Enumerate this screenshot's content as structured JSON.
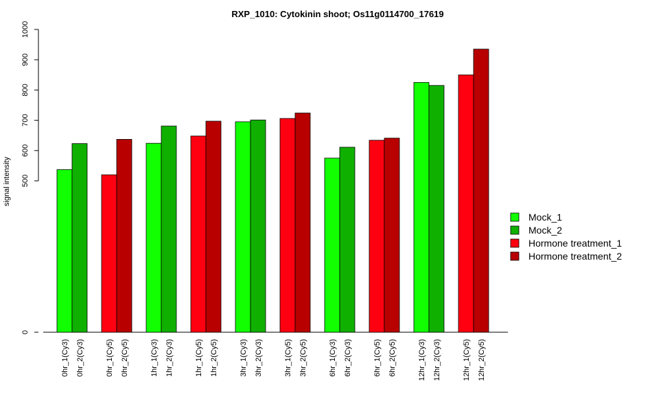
{
  "chart_data": {
    "type": "bar",
    "title": "RXP_1010: Cytokinin shoot; Os11g0114700_17619",
    "xlabel": "",
    "ylabel": "signal intensity",
    "ylim": [
      0,
      1000
    ],
    "y_ticks": [
      "0",
      "500",
      "600",
      "700",
      "800",
      "900",
      "1000"
    ],
    "y_tick_values": [
      0,
      500,
      600,
      700,
      800,
      900,
      1000
    ],
    "categories": [
      "0hr_1(Cy3)",
      "0hr_2(Cy3)",
      "0hr_1(Cy5)",
      "0hr_2(Cy5)",
      "1hr_1(Cy3)",
      "1hr_2(Cy3)",
      "1hr_1(Cy5)",
      "1hr_2(Cy5)",
      "3hr_1(Cy3)",
      "3hr_2(Cy3)",
      "3hr_1(Cy5)",
      "3hr_2(Cy5)",
      "6hr_1(Cy3)",
      "6hr_2(Cy3)",
      "6hr_1(Cy5)",
      "6hr_2(Cy5)",
      "12hr_1(Cy3)",
      "12hr_2(Cy3)",
      "12hr_1(Cy5)",
      "12hr_2(Cy5)"
    ],
    "values": [
      537,
      623,
      520,
      637,
      624,
      681,
      648,
      697,
      695,
      701,
      706,
      724,
      575,
      611,
      634,
      641,
      825,
      815,
      850,
      935
    ],
    "bar_series": [
      0,
      1,
      2,
      3,
      0,
      1,
      2,
      3,
      0,
      1,
      2,
      3,
      0,
      1,
      2,
      3,
      0,
      1,
      2,
      3
    ],
    "series": [
      {
        "name": "Mock_1",
        "color": "#11ff00"
      },
      {
        "name": "Mock_2",
        "color": "#10b000"
      },
      {
        "name": "Hormone treatment_1",
        "color": "#ff0010"
      },
      {
        "name": "Hormone treatment_2",
        "color": "#b80000"
      }
    ],
    "legend_position": "right",
    "grid": false
  }
}
